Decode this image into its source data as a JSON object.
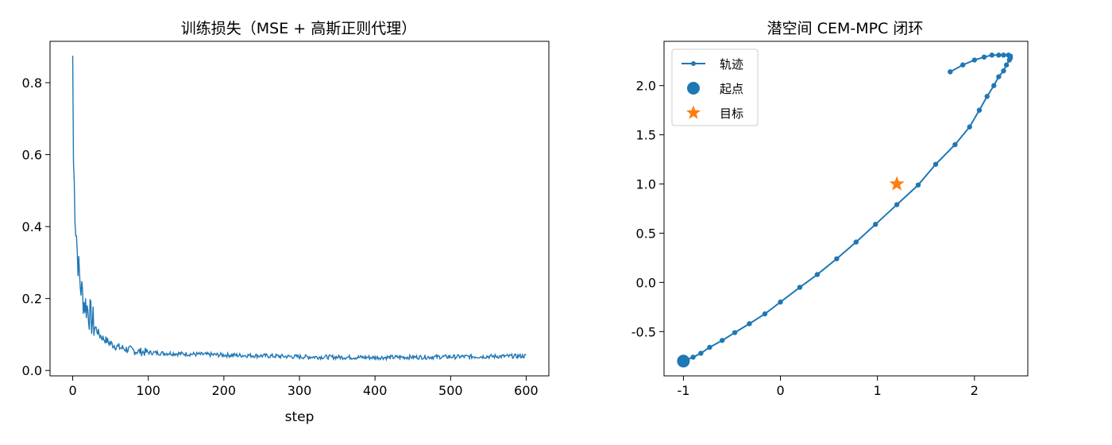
{
  "chart_data": [
    {
      "type": "line",
      "title": "训练损失（MSE + 高斯正则代理）",
      "xlabel": "step",
      "ylabel": "",
      "xlim": [
        -30,
        630
      ],
      "ylim": [
        -0.015,
        0.915
      ],
      "xticks": [
        0,
        100,
        200,
        300,
        400,
        500,
        600
      ],
      "xtick_labels": [
        "0",
        "100",
        "200",
        "300",
        "400",
        "500",
        "600"
      ],
      "yticks": [
        0.0,
        0.2,
        0.4,
        0.6,
        0.8
      ],
      "ytick_labels": [
        "0.0",
        "0.2",
        "0.4",
        "0.6",
        "0.8"
      ],
      "grid": false,
      "color": "#1f77b4",
      "series": [
        {
          "x": [
            0,
            1,
            2,
            3,
            4,
            5,
            6,
            8,
            10,
            12,
            15,
            18,
            20,
            25,
            30,
            35,
            40,
            50,
            60,
            70,
            80,
            90,
            100,
            120,
            150,
            200,
            250,
            300,
            350,
            400,
            450,
            500,
            550,
            600
          ],
          "values": [
            0.875,
            0.58,
            0.52,
            0.45,
            0.4,
            0.38,
            0.33,
            0.28,
            0.24,
            0.22,
            0.19,
            0.18,
            0.17,
            0.14,
            0.12,
            0.1,
            0.09,
            0.075,
            0.065,
            0.06,
            0.055,
            0.052,
            0.05,
            0.048,
            0.046,
            0.043,
            0.041,
            0.038,
            0.037,
            0.036,
            0.037,
            0.038,
            0.039,
            0.04
          ]
        }
      ]
    },
    {
      "type": "line",
      "title": "潜空间 CEM-MPC 闭环",
      "xlabel": "",
      "ylabel": "",
      "xlim": [
        -1.2,
        2.55
      ],
      "ylim": [
        -0.95,
        2.45
      ],
      "xticks": [
        -1,
        0,
        1,
        2
      ],
      "xtick_labels": [
        "-1",
        "0",
        "1",
        "2"
      ],
      "yticks": [
        -0.5,
        0.0,
        0.5,
        1.0,
        1.5,
        2.0
      ],
      "ytick_labels": [
        "-0.5",
        "0.0",
        "0.5",
        "1.0",
        "1.5",
        "2.0"
      ],
      "grid": false,
      "legend": {
        "position": "top-left",
        "entries": [
          {
            "label": "轨迹",
            "marker": "line-dot",
            "color": "#1f77b4"
          },
          {
            "label": "起点",
            "marker": "circle",
            "color": "#1f77b4"
          },
          {
            "label": "目标",
            "marker": "star",
            "color": "#ff7f0e"
          }
        ]
      },
      "series": [
        {
          "name": "轨迹",
          "color": "#1f77b4",
          "x": [
            -1.0,
            -0.9,
            -0.82,
            -0.73,
            -0.6,
            -0.47,
            -0.32,
            -0.16,
            0.0,
            0.2,
            0.38,
            0.58,
            0.78,
            0.98,
            1.2,
            1.42,
            1.6,
            1.8,
            1.95,
            2.05,
            2.13,
            2.2,
            2.25,
            2.3,
            2.33,
            2.36,
            2.37,
            2.37,
            2.35,
            2.3,
            2.25,
            2.18,
            2.1,
            2.0,
            1.88,
            1.75
          ],
          "values": [
            -0.8,
            -0.76,
            -0.72,
            -0.66,
            -0.59,
            -0.51,
            -0.42,
            -0.32,
            -0.2,
            -0.05,
            0.08,
            0.24,
            0.41,
            0.59,
            0.79,
            0.99,
            1.2,
            1.4,
            1.58,
            1.75,
            1.89,
            2.0,
            2.09,
            2.15,
            2.21,
            2.26,
            2.28,
            2.3,
            2.31,
            2.31,
            2.31,
            2.31,
            2.29,
            2.26,
            2.21,
            2.14
          ]
        },
        {
          "name": "起点",
          "color": "#1f77b4",
          "x": [
            -1.0
          ],
          "values": [
            -0.8
          ]
        },
        {
          "name": "目标",
          "color": "#ff7f0e",
          "x": [
            1.2
          ],
          "values": [
            1.0
          ]
        }
      ]
    }
  ]
}
